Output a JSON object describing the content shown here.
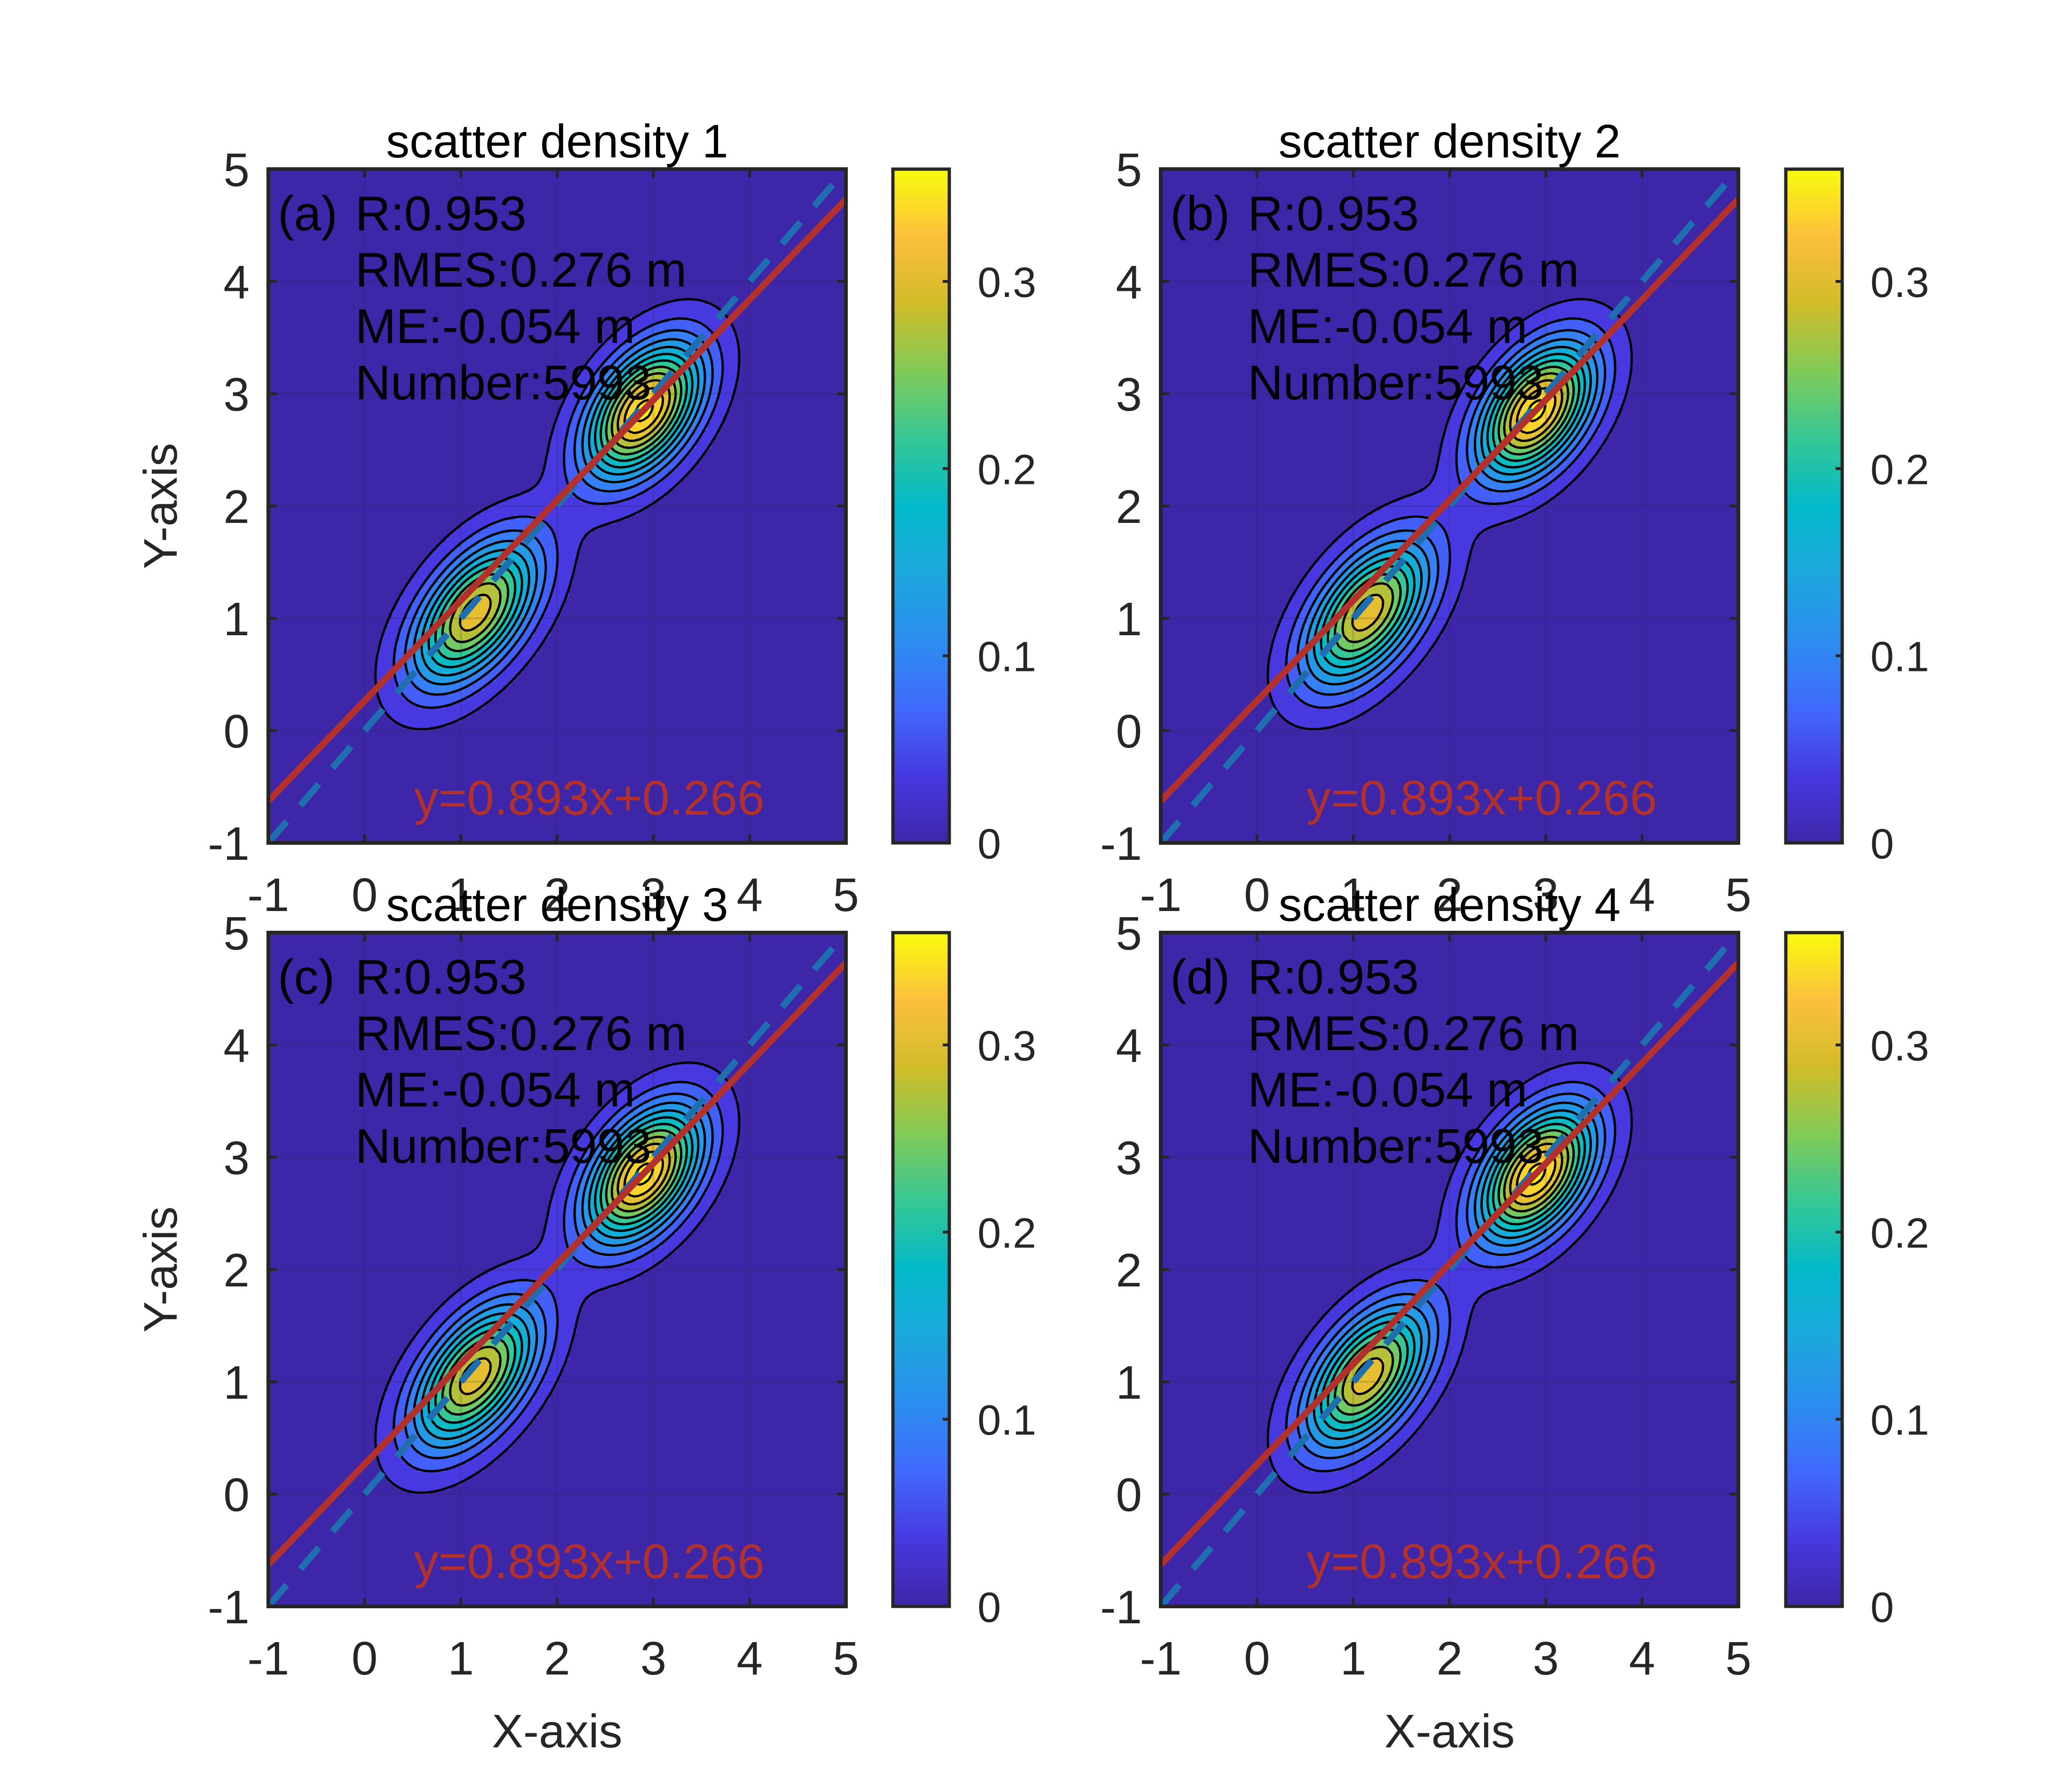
{
  "chart_data": [
    {
      "type": "heatmap",
      "subtype": "filled-contour scatter density",
      "panel_label": "(a)",
      "title": "scatter density 1",
      "xlabel": "",
      "ylabel": "Y-axis",
      "xlim": [
        -1,
        5
      ],
      "ylim": [
        -1,
        5
      ],
      "xticks": [
        "-1",
        "0",
        "1",
        "2",
        "3",
        "4",
        "5"
      ],
      "yticks": [
        "-1",
        "0",
        "1",
        "2",
        "3",
        "4",
        "5"
      ],
      "grid": true,
      "stats": [
        "R:0.953",
        "RMES:0.276 m",
        "ME:-0.054 m",
        "Number:5993"
      ],
      "fit_equation": "y=0.893x+0.266",
      "fit_line": {
        "slope": 0.893,
        "intercept": 0.266,
        "color": "#b2312c"
      },
      "reference_line": {
        "slope": 1,
        "intercept": 0,
        "style": "dashed",
        "color": "#1f6eb0"
      },
      "density_peaks": [
        {
          "x": 1.15,
          "y": 1.05,
          "value": 0.31
        },
        {
          "x": 2.9,
          "y": 2.85,
          "value": 0.36
        }
      ],
      "colorbar": {
        "min": 0,
        "max": 0.36,
        "ticks": [
          "0",
          "0.1",
          "0.2",
          "0.3"
        ],
        "colormap": "parula"
      }
    },
    {
      "type": "heatmap",
      "subtype": "filled-contour scatter density",
      "panel_label": "(b)",
      "title": "scatter density 2",
      "xlabel": "",
      "ylabel": "",
      "xlim": [
        -1,
        5
      ],
      "ylim": [
        -1,
        5
      ],
      "xticks": [
        "-1",
        "0",
        "1",
        "2",
        "3",
        "4",
        "5"
      ],
      "yticks": [
        "-1",
        "0",
        "1",
        "2",
        "3",
        "4",
        "5"
      ],
      "grid": true,
      "stats": [
        "R:0.953",
        "RMES:0.276 m",
        "ME:-0.054 m",
        "Number:5993"
      ],
      "fit_equation": "y=0.893x+0.266",
      "fit_line": {
        "slope": 0.893,
        "intercept": 0.266,
        "color": "#b2312c"
      },
      "reference_line": {
        "slope": 1,
        "intercept": 0,
        "style": "dashed",
        "color": "#1f6eb0"
      },
      "density_peaks": [
        {
          "x": 1.15,
          "y": 1.05,
          "value": 0.31
        },
        {
          "x": 2.9,
          "y": 2.85,
          "value": 0.36
        }
      ],
      "colorbar": {
        "min": 0,
        "max": 0.36,
        "ticks": [
          "0",
          "0.1",
          "0.2",
          "0.3"
        ],
        "colormap": "parula"
      }
    },
    {
      "type": "heatmap",
      "subtype": "filled-contour scatter density",
      "panel_label": "(c)",
      "title": "scatter density 3",
      "xlabel": "X-axis",
      "ylabel": "Y-axis",
      "xlim": [
        -1,
        5
      ],
      "ylim": [
        -1,
        5
      ],
      "xticks": [
        "-1",
        "0",
        "1",
        "2",
        "3",
        "4",
        "5"
      ],
      "yticks": [
        "-1",
        "0",
        "1",
        "2",
        "3",
        "4",
        "5"
      ],
      "grid": true,
      "stats": [
        "R:0.953",
        "RMES:0.276 m",
        "ME:-0.054 m",
        "Number:5993"
      ],
      "fit_equation": "y=0.893x+0.266",
      "fit_line": {
        "slope": 0.893,
        "intercept": 0.266,
        "color": "#b2312c"
      },
      "reference_line": {
        "slope": 1,
        "intercept": 0,
        "style": "dashed",
        "color": "#1f6eb0"
      },
      "density_peaks": [
        {
          "x": 1.15,
          "y": 1.05,
          "value": 0.31
        },
        {
          "x": 2.9,
          "y": 2.85,
          "value": 0.36
        }
      ],
      "colorbar": {
        "min": 0,
        "max": 0.36,
        "ticks": [
          "0",
          "0.1",
          "0.2",
          "0.3"
        ],
        "colormap": "parula"
      }
    },
    {
      "type": "heatmap",
      "subtype": "filled-contour scatter density",
      "panel_label": "(d)",
      "title": "scatter density 4",
      "xlabel": "X-axis",
      "ylabel": "",
      "xlim": [
        -1,
        5
      ],
      "ylim": [
        -1,
        5
      ],
      "xticks": [
        "-1",
        "0",
        "1",
        "2",
        "3",
        "4",
        "5"
      ],
      "yticks": [
        "-1",
        "0",
        "1",
        "2",
        "3",
        "4",
        "5"
      ],
      "grid": true,
      "stats": [
        "R:0.953",
        "RMES:0.276 m",
        "ME:-0.054 m",
        "Number:5993"
      ],
      "fit_equation": "y=0.893x+0.266",
      "fit_line": {
        "slope": 0.893,
        "intercept": 0.266,
        "color": "#b2312c"
      },
      "reference_line": {
        "slope": 1,
        "intercept": 0,
        "style": "dashed",
        "color": "#1f6eb0"
      },
      "density_peaks": [
        {
          "x": 1.15,
          "y": 1.05,
          "value": 0.31
        },
        {
          "x": 2.9,
          "y": 2.85,
          "value": 0.36
        }
      ],
      "colorbar": {
        "min": 0,
        "max": 0.36,
        "ticks": [
          "0",
          "0.1",
          "0.2",
          "0.3"
        ],
        "colormap": "parula"
      }
    }
  ]
}
